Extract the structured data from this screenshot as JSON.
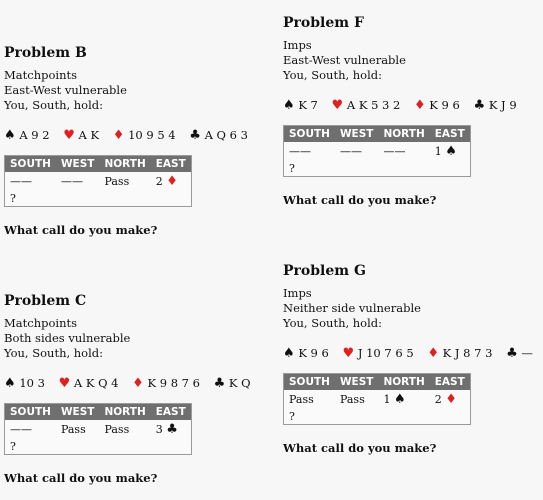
{
  "problems": [
    {
      "title": "Problem B",
      "lines": [
        "Matchpoints",
        "East-West vulnerable",
        "You, South, hold:"
      ],
      "hand": {
        "spades": "A 9 2",
        "hearts": "A K",
        "diamonds": "10 9 5 4",
        "clubs": "A Q 6 3"
      },
      "headers": [
        "SOUTH",
        "WEST",
        "NORTH",
        "EAST"
      ],
      "auction": [
        [
          "——",
          "——",
          "Pass",
          "2"
        ],
        [
          "?",
          "",
          "",
          ""
        ]
      ],
      "question": "What call do you make?"
    },
    {
      "title": "Problem C",
      "lines": [
        "Matchpoints",
        "Both sides vulnerable",
        "You, South, hold:"
      ],
      "hand": {
        "spades": "10 3",
        "hearts": "A K Q 4",
        "diamonds": "K 9 8 7 6",
        "clubs": "K Q"
      },
      "headers": [
        "SOUTH",
        "WEST",
        "NORTH",
        "EAST"
      ],
      "auction": [
        [
          "——",
          "Pass",
          "Pass",
          "3"
        ],
        [
          "?",
          "",
          "",
          ""
        ]
      ],
      "question": "What call do you make?"
    },
    {
      "title": "Problem F",
      "lines": [
        "Imps",
        "East-West vulnerable",
        "You, South, hold:"
      ],
      "hand": {
        "spades": "K 7",
        "hearts": "A K 5 3 2",
        "diamonds": "K 9 6",
        "clubs": "K J 9"
      },
      "headers": [
        "SOUTH",
        "WEST",
        "NORTH",
        "EAST"
      ],
      "auction": [
        [
          "——",
          "——",
          "——",
          "1"
        ],
        [
          "?",
          "",
          "",
          ""
        ]
      ],
      "question": "What call do you make?"
    },
    {
      "title": "Problem G",
      "lines": [
        "Imps",
        "Neither side vulnerable",
        "You, South, hold:"
      ],
      "hand": {
        "spades": "K 9 6",
        "hearts": "J 10 7 6 5",
        "diamonds": "K J 8 7 3",
        "clubs": "—"
      },
      "headers": [
        "SOUTH",
        "WEST",
        "NORTH",
        "EAST"
      ],
      "auction": [
        [
          "Pass",
          "Pass",
          "1",
          "2"
        ],
        [
          "?",
          "",
          "",
          ""
        ]
      ],
      "question": "What call do you make?"
    }
  ],
  "suit_symbols": {
    "spades": "♠",
    "hearts": "♥",
    "diamonds": "♦",
    "clubs": "♣"
  },
  "colors": {
    "red_suit": "#e02020",
    "header_bg": "#6f6f6f"
  }
}
